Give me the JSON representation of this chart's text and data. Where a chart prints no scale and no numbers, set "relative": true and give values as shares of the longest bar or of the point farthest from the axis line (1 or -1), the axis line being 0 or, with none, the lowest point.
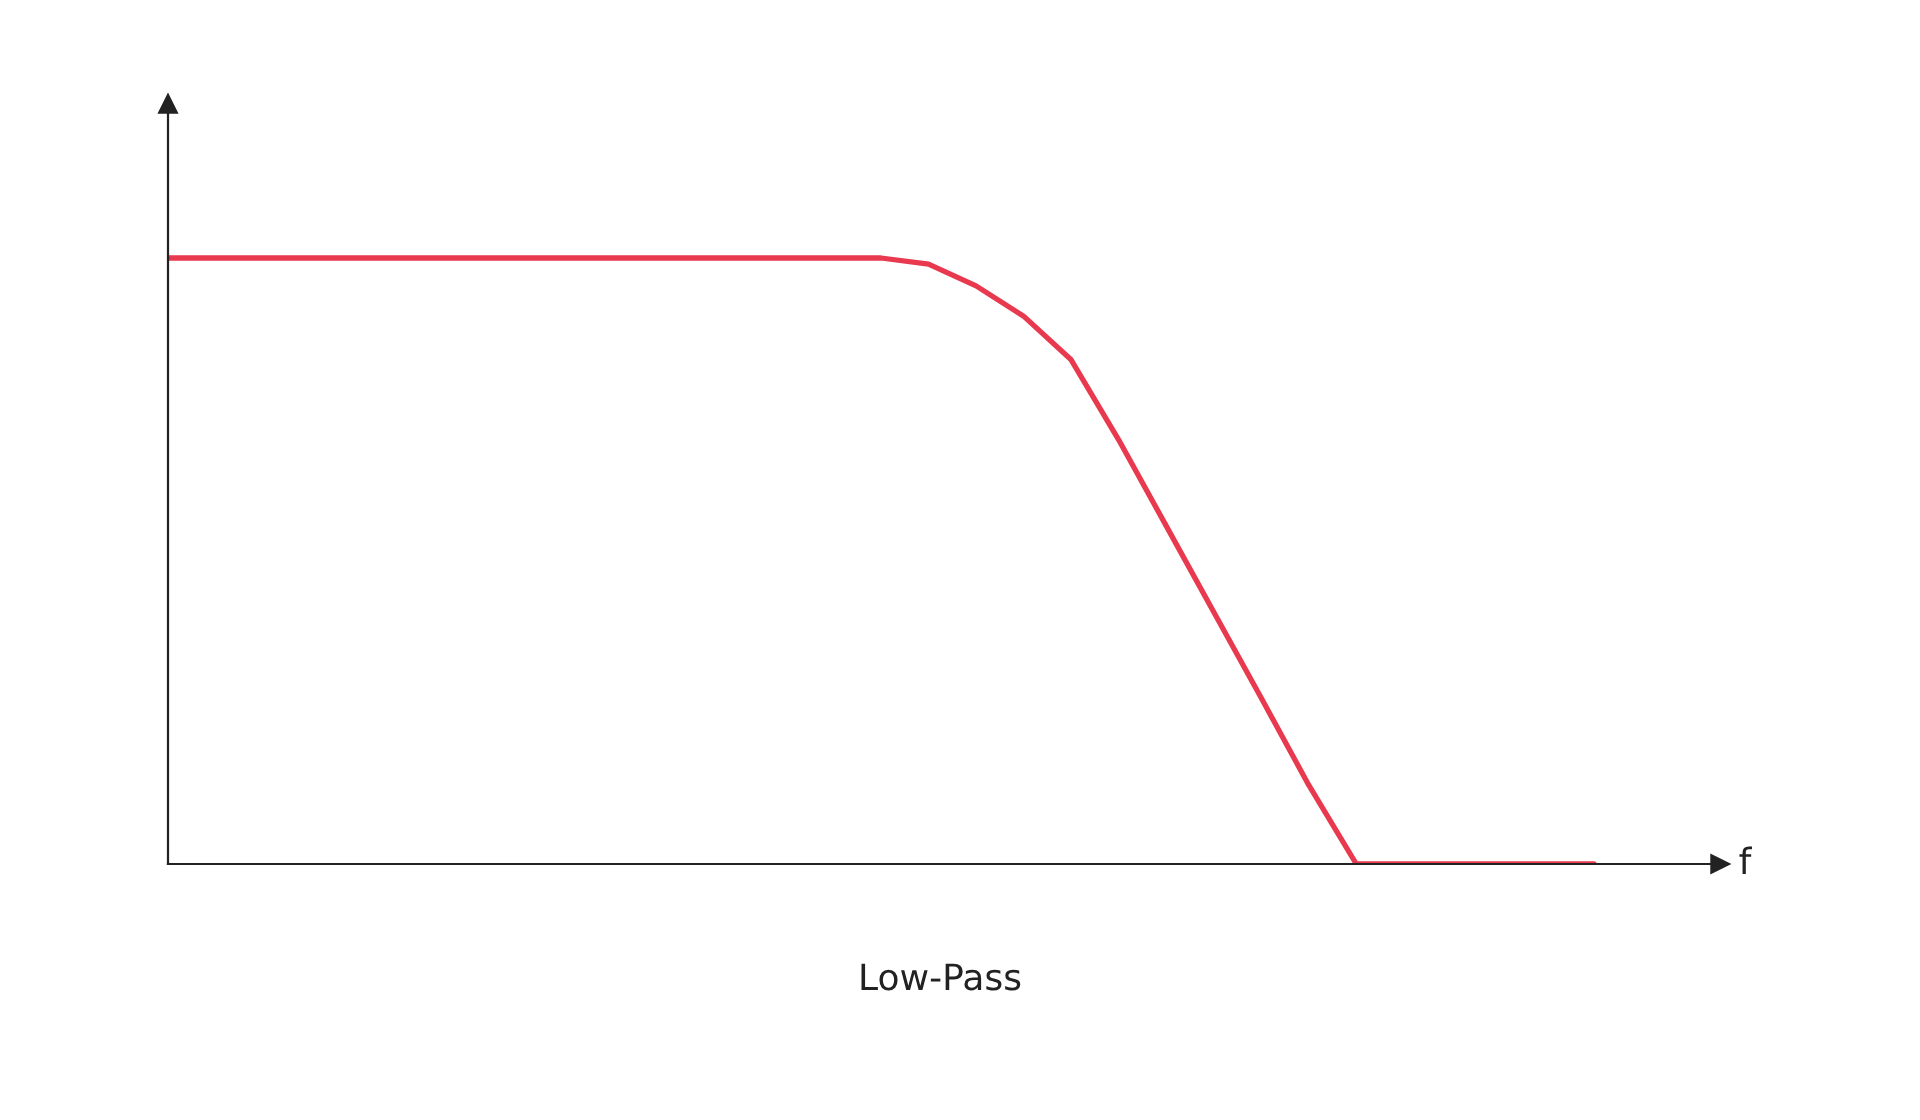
{
  "chart_data": {
    "type": "line",
    "title": "Low-Pass",
    "xlabel": "f",
    "relative": true,
    "categories": [
      null,
      null,
      null,
      null,
      null,
      null,
      null,
      null,
      null,
      null,
      null,
      null,
      null,
      null,
      null,
      null,
      null,
      null,
      null,
      null,
      null,
      null,
      null,
      null,
      null,
      null,
      null,
      null,
      null,
      null,
      null
    ],
    "series": [
      {
        "color": "#e8394f",
        "values": [
          1,
          1,
          1,
          1,
          1,
          1,
          1,
          1,
          1,
          1,
          1,
          1,
          1,
          1,
          1,
          1,
          0.99,
          0.954,
          0.904,
          0.832,
          0.7,
          0.558,
          0.416,
          0.274,
          0.13,
          0,
          0,
          0,
          0,
          0,
          0
        ]
      }
    ],
    "grid": false,
    "marker": "none",
    "line_style": "solid"
  }
}
